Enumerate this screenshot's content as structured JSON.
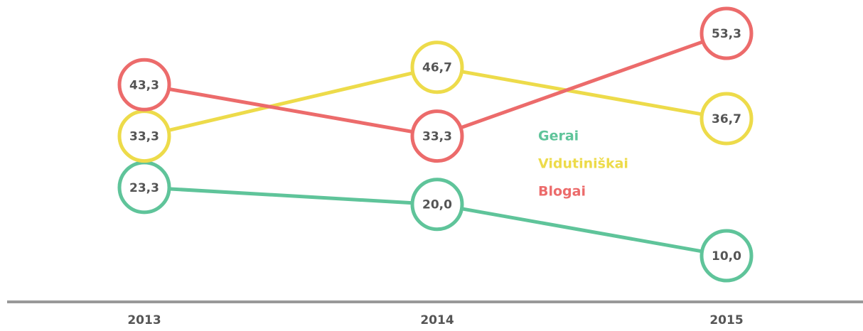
{
  "chart_data": {
    "type": "line",
    "categories": [
      "2013",
      "2014",
      "2015"
    ],
    "series": [
      {
        "name": "Gerai",
        "color": "#5fc49a",
        "values": [
          23.3,
          20.0,
          10.0
        ],
        "value_labels": [
          "23,3",
          "20,0",
          "10,0"
        ]
      },
      {
        "name": "Vidutiniškai",
        "color": "#eddb4a",
        "values": [
          33.3,
          46.7,
          36.7
        ],
        "value_labels": [
          "33,3",
          "46,7",
          "36,7"
        ]
      },
      {
        "name": "Blogai",
        "color": "#ec6b6b",
        "values": [
          43.3,
          33.3,
          53.3
        ],
        "value_labels": [
          "43,3",
          "33,3",
          "53,3"
        ]
      }
    ]
  }
}
